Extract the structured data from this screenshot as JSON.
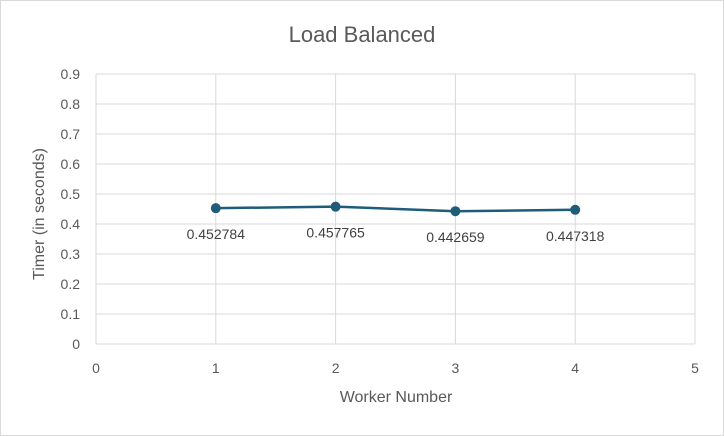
{
  "chart_data": {
    "type": "scatter",
    "title": "Load Balanced",
    "xlabel": "Worker Number",
    "ylabel": "Timer (in seconds)",
    "xlim": [
      0,
      5
    ],
    "ylim": [
      0,
      0.9
    ],
    "x_ticks": [
      "0",
      "1",
      "2",
      "3",
      "4",
      "5"
    ],
    "y_ticks": [
      "0",
      "0.1",
      "0.2",
      "0.3",
      "0.4",
      "0.5",
      "0.6",
      "0.7",
      "0.8",
      "0.9"
    ],
    "grid": true,
    "legend": "none",
    "series": [
      {
        "color": "#1f5c7a",
        "x": [
          1,
          2,
          3,
          4
        ],
        "y": [
          0.452784,
          0.457765,
          0.442659,
          0.447318
        ],
        "labels": [
          "0.452784",
          "0.457765",
          "0.442659",
          "0.447318"
        ]
      }
    ]
  }
}
